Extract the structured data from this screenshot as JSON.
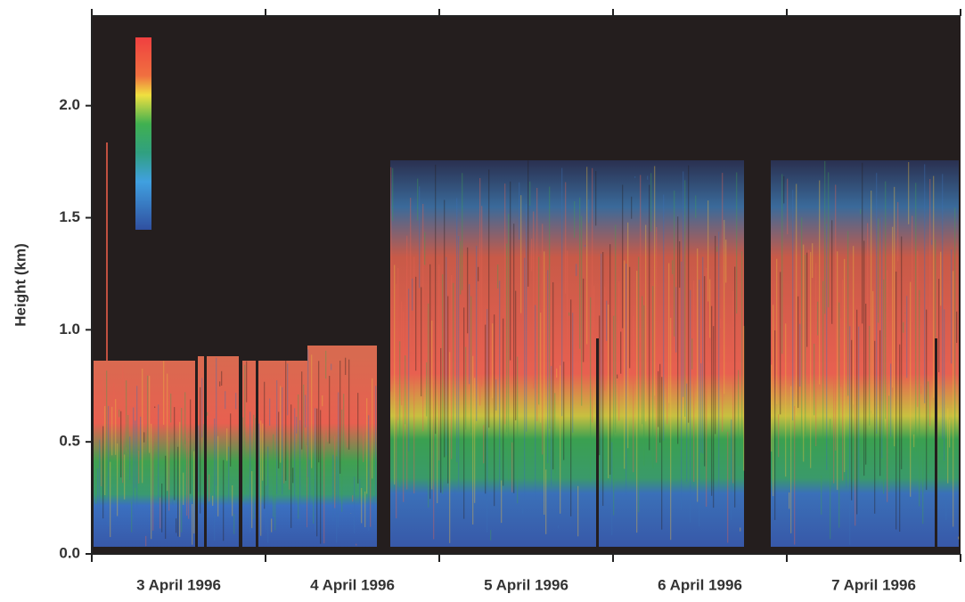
{
  "chart_data": {
    "type": "heatmap",
    "y_label": "Height (km)",
    "categories": [
      "3 April 1996",
      "4 April 1996",
      "5 April 1996",
      "6 April 1996",
      "7 April 1996"
    ],
    "ylim": [
      0,
      2.4
    ],
    "yticks": [
      {
        "value": 0,
        "label": "0.0"
      },
      0.5,
      {
        "value": 1,
        "label": "1.0"
      },
      1.5,
      {
        "value": 2,
        "label": "2.0"
      }
    ]
  }
}
